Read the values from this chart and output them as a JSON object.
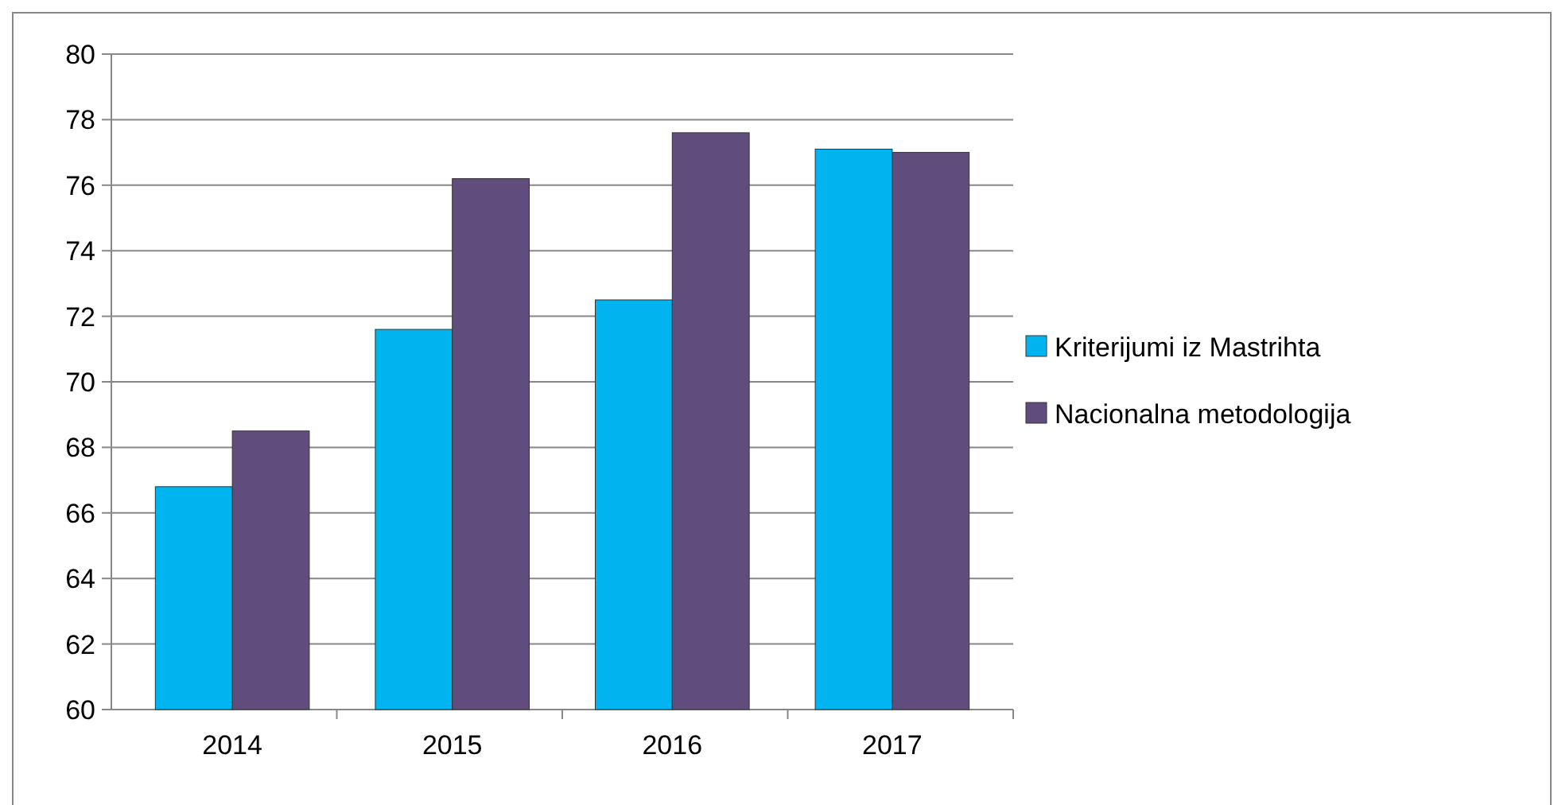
{
  "chart_data": {
    "type": "bar",
    "categories": [
      "2014",
      "2015",
      "2016",
      "2017"
    ],
    "series": [
      {
        "name": "Kriterijumi iz Mastrihta",
        "color": "#00b4f0",
        "values": [
          66.8,
          71.6,
          72.5,
          77.1
        ]
      },
      {
        "name": "Nacionalna metodologija",
        "color": "#614c7e",
        "values": [
          68.5,
          76.2,
          77.6,
          77.0
        ]
      }
    ],
    "ylim": [
      60,
      80
    ],
    "yticks": [
      60,
      62,
      64,
      66,
      68,
      70,
      72,
      74,
      76,
      78,
      80
    ],
    "grid": "y",
    "legend": "right"
  }
}
